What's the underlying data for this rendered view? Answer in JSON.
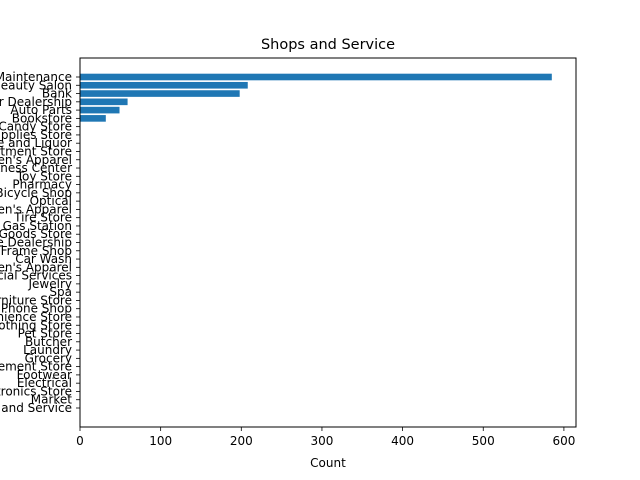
{
  "chart_data": {
    "type": "bar",
    "orientation": "horizontal",
    "title": "Shops and Service",
    "xlabel": "Count",
    "ylabel": "",
    "xlim": [
      0,
      615
    ],
    "xticks": [
      0,
      100,
      200,
      300,
      400,
      500,
      600
    ],
    "grid": false,
    "bar_color": "#1f77b4",
    "categories": [
      "Auto Maintenance",
      "Beauty Salon",
      "Bank",
      "Car Dealership",
      "Auto Parts",
      "Bookstore",
      "Candy Store",
      "Office Supplies Store",
      "Wine and Liquor",
      "Department Store",
      "Women's Apparel",
      "Fitness Center",
      "Toy Store",
      "Pharmacy",
      "Bicycle Shop",
      "Optical",
      "Men's Apparel",
      "Tire Store",
      "Gas Station",
      "Sporting Goods Store",
      "Motorcycle Dealership",
      "Frame Shop",
      "Car Wash",
      "Children's Apparel",
      "Financial Services",
      "Jewelry",
      "Spa",
      "Furniture Store",
      "Mobile Phone Shop",
      "Convenience Store",
      "Clothing Store",
      "Pet Store",
      "Butcher",
      "Laundry",
      "Grocery",
      "Home Improvement Store",
      "Footwear",
      "Electrical",
      "Electronics Store",
      "Market",
      "Shops and Service"
    ],
    "values": [
      585,
      208,
      198,
      59,
      49,
      32,
      0,
      0,
      0,
      0,
      0,
      0,
      0,
      0,
      0,
      0,
      0,
      0,
      0,
      0,
      0,
      0,
      0,
      0,
      0,
      0,
      0,
      0,
      0,
      0,
      0,
      0,
      0,
      0,
      0,
      0,
      0,
      0,
      0,
      0,
      0
    ]
  }
}
